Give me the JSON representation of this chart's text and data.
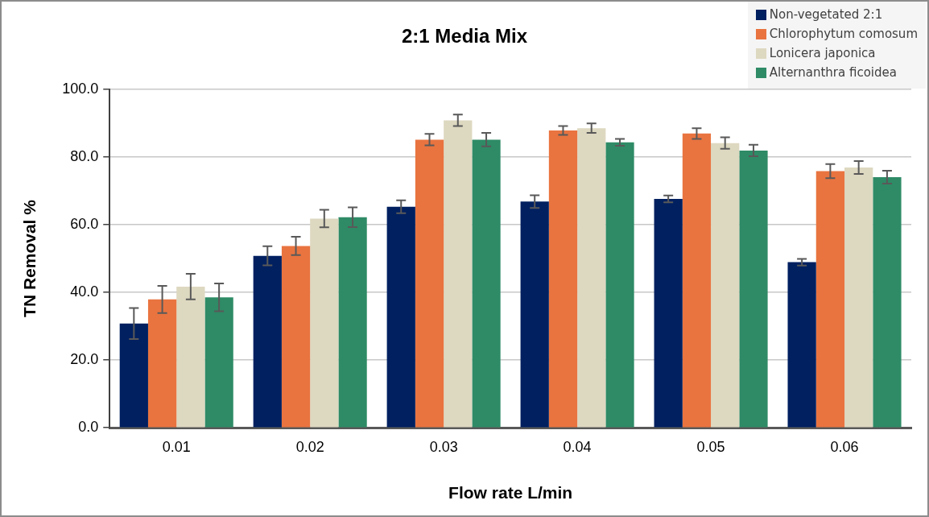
{
  "chart_data": {
    "type": "bar",
    "title": "2:1 Media Mix",
    "xlabel": "Flow rate L/min",
    "ylabel": "TN Removal %",
    "categories": [
      "0.01",
      "0.02",
      "0.03",
      "0.04",
      "0.05",
      "0.06"
    ],
    "series": [
      {
        "name": "Non-vegetated 2:1",
        "color": "#002060",
        "values": [
          30.8,
          50.8,
          65.3,
          66.8,
          67.6,
          48.9
        ],
        "errors": [
          4.6,
          2.8,
          1.9,
          1.9,
          1.0,
          1.0
        ]
      },
      {
        "name": "Chlorophytum comosum",
        "color": "#e97440",
        "values": [
          37.9,
          53.7,
          85.1,
          87.8,
          86.9,
          75.8
        ],
        "errors": [
          4.0,
          2.7,
          1.7,
          1.3,
          1.6,
          2.1
        ]
      },
      {
        "name": "Lonicera japonica",
        "color": "#ddd8c0",
        "values": [
          41.7,
          61.8,
          90.8,
          88.5,
          84.1,
          76.9
        ],
        "errors": [
          3.8,
          2.6,
          1.7,
          1.4,
          1.7,
          1.9
        ]
      },
      {
        "name": "Alternanthra ficoidea",
        "color": "#2e8b66",
        "values": [
          38.5,
          62.2,
          85.1,
          84.3,
          81.9,
          74.0
        ],
        "errors": [
          4.1,
          2.9,
          2.0,
          1.0,
          1.7,
          1.9
        ]
      }
    ],
    "ylim": [
      0,
      100
    ],
    "yticks": [
      {
        "value": 0,
        "label": "0.0"
      },
      {
        "value": 20,
        "label": "20.0"
      },
      {
        "value": 40,
        "label": "40.0"
      },
      {
        "value": 60,
        "label": "60.0"
      },
      {
        "value": 80,
        "label": "80.0"
      },
      {
        "value": 100,
        "label": "100.0"
      }
    ],
    "grid": "y",
    "legend": "top right"
  }
}
